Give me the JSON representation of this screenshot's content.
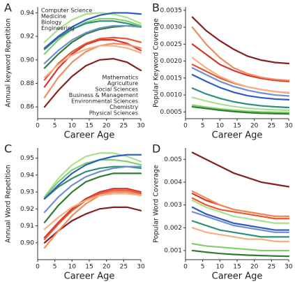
{
  "chart_data": [
    {
      "type": "line",
      "panel": "A",
      "x_label": "Career Age",
      "y_label": "Annual keyword Repetition",
      "x": [
        2,
        6,
        10,
        14,
        18,
        22,
        26,
        30
      ],
      "xlim": [
        0,
        30
      ],
      "xticks": [
        0,
        5,
        10,
        15,
        20,
        25,
        30
      ],
      "ylim": [
        0.85,
        0.945
      ],
      "yticks": [
        0.86,
        0.88,
        {
          "value": 0.9,
          "label": "0.90"
        },
        0.92,
        0.94
      ],
      "series": [
        {
          "name": "Computer Science",
          "color": "#a8e08e",
          "values": [
            0.915,
            0.926,
            0.934,
            0.939,
            0.94,
            0.939,
            0.936,
            0.931
          ]
        },
        {
          "name": "Medicine",
          "color": "#7fcf6b",
          "values": [
            0.905,
            0.917,
            0.926,
            0.932,
            0.935,
            0.935,
            0.933,
            0.929
          ]
        },
        {
          "name": "Biology",
          "color": "#2e7d32",
          "values": [
            0.893,
            0.905,
            0.915,
            0.922,
            0.926,
            0.928,
            0.929,
            0.928
          ]
        },
        {
          "name": "Engineering",
          "color": "#2f8f7a",
          "values": [
            0.909,
            0.919,
            0.926,
            0.931,
            0.933,
            0.933,
            0.931,
            0.928
          ]
        },
        {
          "name": "Mathematics",
          "color": "#8b1e1e",
          "values": [
            0.86,
            0.874,
            0.886,
            0.895,
            0.9,
            0.901,
            0.898,
            0.891
          ]
        },
        {
          "name": "Agriculture",
          "color": "#d9342b",
          "values": [
            0.877,
            0.893,
            0.905,
            0.913,
            0.917,
            0.917,
            0.914,
            0.908
          ]
        },
        {
          "name": "Social Sciences",
          "color": "#e8582e",
          "values": [
            0.883,
            0.897,
            0.907,
            0.914,
            0.918,
            0.919,
            0.918,
            0.915
          ]
        },
        {
          "name": "Business & Management",
          "color": "#f08c5c",
          "values": [
            0.868,
            0.885,
            0.898,
            0.907,
            0.912,
            0.914,
            0.913,
            0.91
          ]
        },
        {
          "name": "Environmental Sciences",
          "color": "#f6b083",
          "values": [
            0.885,
            0.896,
            0.904,
            0.909,
            0.912,
            0.912,
            0.91,
            0.906
          ]
        },
        {
          "name": "Chemistry",
          "color": "#6f8fd0",
          "values": [
            0.897,
            0.908,
            0.917,
            0.923,
            0.927,
            0.929,
            0.929,
            0.928
          ]
        },
        {
          "name": "Physical Sciences",
          "color": "#2f5bc4",
          "values": [
            0.91,
            0.92,
            0.928,
            0.934,
            0.938,
            0.94,
            0.94,
            0.939
          ]
        }
      ]
    },
    {
      "type": "line",
      "panel": "B",
      "x_label": "Career Age",
      "y_label": "Popular Keyword Coverage",
      "x": [
        2,
        6,
        10,
        14,
        18,
        22,
        26,
        30
      ],
      "xlim": [
        0,
        30
      ],
      "xticks": [
        0,
        5,
        10,
        15,
        20,
        25,
        30
      ],
      "ylim": [
        0.0003,
        0.0036
      ],
      "yticks": [
        0.0005,
        {
          "value": 0.001,
          "label": "0.0010"
        },
        0.0015,
        {
          "value": 0.002,
          "label": "0.0020"
        },
        0.0025,
        {
          "value": 0.003,
          "label": "0.0030"
        },
        0.0035
      ],
      "series": [
        {
          "color": "#a8e08e",
          "values": [
            0.00093,
            0.00082,
            0.00073,
            0.00066,
            0.00061,
            0.00058,
            0.00056,
            0.00055
          ]
        },
        {
          "color": "#7fcf6b",
          "values": [
            0.0007,
            0.00064,
            0.00059,
            0.00055,
            0.00052,
            0.0005,
            0.00049,
            0.00048
          ]
        },
        {
          "color": "#2e7d32",
          "values": [
            0.00065,
            0.0006,
            0.00055,
            0.00051,
            0.00048,
            0.00046,
            0.00045,
            0.00044
          ]
        },
        {
          "color": "#2f8f7a",
          "values": [
            0.0012,
            0.00103,
            0.0009,
            0.0008,
            0.00073,
            0.00068,
            0.00065,
            0.00063
          ]
        },
        {
          "color": "#8b1e1e",
          "values": [
            0.0033,
            0.0029,
            0.0026,
            0.00235,
            0.00215,
            0.00203,
            0.00196,
            0.00193
          ]
        },
        {
          "color": "#d9342b",
          "values": [
            0.0025,
            0.0022,
            0.0019,
            0.00172,
            0.00158,
            0.00149,
            0.00143,
            0.0014
          ]
        },
        {
          "color": "#e8582e",
          "values": [
            0.0019,
            0.0017,
            0.0015,
            0.00135,
            0.00124,
            0.00116,
            0.0011,
            0.00106
          ]
        },
        {
          "color": "#f08c5c",
          "values": [
            0.003,
            0.0025,
            0.0021,
            0.0018,
            0.00163,
            0.00152,
            0.00146,
            0.00143
          ]
        },
        {
          "color": "#f6b083",
          "values": [
            0.0021,
            0.0018,
            0.00155,
            0.00137,
            0.00124,
            0.00116,
            0.0011,
            0.00107
          ]
        },
        {
          "color": "#6f8fd0",
          "values": [
            0.0018,
            0.0016,
            0.0014,
            0.00125,
            0.00114,
            0.00106,
            0.001,
            0.00097
          ]
        },
        {
          "color": "#2f5bc4",
          "values": [
            0.0016,
            0.0014,
            0.00122,
            0.00108,
            0.00098,
            0.00092,
            0.00088,
            0.00086
          ]
        }
      ]
    },
    {
      "type": "line",
      "panel": "C",
      "x_label": "Career Age",
      "y_label": "Annual Word Repetition",
      "x": [
        2,
        6,
        10,
        14,
        18,
        22,
        26,
        30
      ],
      "xlim": [
        0,
        30
      ],
      "xticks": [
        0,
        5,
        10,
        15,
        20,
        25,
        30
      ],
      "ylim": [
        0.89,
        0.956
      ],
      "yticks": [
        {
          "value": 0.9,
          "label": "0.90"
        },
        0.91,
        0.92,
        0.93,
        0.94,
        0.95
      ],
      "series": [
        {
          "color": "#a8e08e",
          "values": [
            0.927,
            0.938,
            0.946,
            0.951,
            0.953,
            0.953,
            0.951,
            0.948
          ]
        },
        {
          "color": "#7fcf6b",
          "values": [
            0.927,
            0.936,
            0.943,
            0.947,
            0.949,
            0.949,
            0.948,
            0.946
          ]
        },
        {
          "color": "#2e7d32",
          "values": [
            0.912,
            0.922,
            0.93,
            0.936,
            0.939,
            0.941,
            0.941,
            0.941
          ]
        },
        {
          "color": "#2f8f7a",
          "values": [
            0.926,
            0.933,
            0.938,
            0.942,
            0.944,
            0.945,
            0.945,
            0.944
          ]
        },
        {
          "color": "#8b1e1e",
          "values": [
            0.9,
            0.907,
            0.913,
            0.917,
            0.92,
            0.921,
            0.921,
            0.919
          ]
        },
        {
          "color": "#d9342b",
          "values": [
            0.903,
            0.912,
            0.92,
            0.926,
            0.93,
            0.932,
            0.932,
            0.93
          ]
        },
        {
          "color": "#e8582e",
          "values": [
            0.902,
            0.911,
            0.919,
            0.925,
            0.929,
            0.931,
            0.931,
            0.929
          ]
        },
        {
          "color": "#f08c5c",
          "values": [
            0.897,
            0.907,
            0.916,
            0.923,
            0.928,
            0.93,
            0.93,
            0.928
          ]
        },
        {
          "color": "#f6b083",
          "values": [
            0.908,
            0.915,
            0.921,
            0.925,
            0.928,
            0.929,
            0.929,
            0.928
          ]
        },
        {
          "color": "#6f8fd0",
          "values": [
            0.918,
            0.927,
            0.934,
            0.939,
            0.942,
            0.944,
            0.945,
            0.945
          ]
        },
        {
          "color": "#2f5bc4",
          "values": [
            0.926,
            0.934,
            0.941,
            0.946,
            0.949,
            0.951,
            0.952,
            0.952
          ]
        }
      ]
    },
    {
      "type": "line",
      "panel": "D",
      "x_label": "Career Age",
      "y_label": "Popular Word Coverage",
      "x": [
        2,
        6,
        10,
        14,
        18,
        22,
        26,
        30
      ],
      "xlim": [
        0,
        30
      ],
      "xticks": [
        0,
        5,
        10,
        15,
        20,
        25,
        30
      ],
      "ylim": [
        0.0006,
        0.0055
      ],
      "yticks": [
        0.001,
        0.002,
        0.003,
        0.004,
        0.005
      ],
      "series": [
        {
          "color": "#a8e08e",
          "values": [
            0.0032,
            0.0029,
            0.0027,
            0.0025,
            0.0024,
            0.0023,
            0.0022,
            0.0022
          ]
        },
        {
          "color": "#7fcf6b",
          "values": [
            0.0013,
            0.0012,
            0.00115,
            0.0011,
            0.00105,
            0.001,
            0.001,
            0.001
          ]
        },
        {
          "color": "#2e7d32",
          "values": [
            0.001,
            0.00093,
            0.00087,
            0.00083,
            0.0008,
            0.00078,
            0.00076,
            0.00075
          ]
        },
        {
          "color": "#2f8f7a",
          "values": [
            0.0023,
            0.0021,
            0.0019,
            0.0018,
            0.0017,
            0.0016,
            0.0016,
            0.0016
          ]
        },
        {
          "color": "#8b1e1e",
          "values": [
            0.0053,
            0.005,
            0.0047,
            0.0044,
            0.0042,
            0.004,
            0.0039,
            0.0038
          ]
        },
        {
          "color": "#d9342b",
          "values": [
            0.0035,
            0.0032,
            0.003,
            0.0028,
            0.0027,
            0.0026,
            0.0025,
            0.0025
          ]
        },
        {
          "color": "#e8582e",
          "values": [
            0.0033,
            0.003,
            0.0028,
            0.0027,
            0.0026,
            0.0025,
            0.0024,
            0.0024
          ]
        },
        {
          "color": "#f08c5c",
          "values": [
            0.0036,
            0.0033,
            0.003,
            0.0028,
            0.0027,
            0.0026,
            0.0025,
            0.0025
          ]
        },
        {
          "color": "#f6b083",
          "values": [
            0.002,
            0.0018,
            0.0017,
            0.0016,
            0.0015,
            0.0015,
            0.0014,
            0.0014
          ]
        },
        {
          "color": "#6f8fd0",
          "values": [
            0.0027,
            0.0025,
            0.0023,
            0.0021,
            0.002,
            0.0019,
            0.0018,
            0.0018
          ]
        },
        {
          "color": "#2f5bc4",
          "values": [
            0.0029,
            0.0026,
            0.0024,
            0.0022,
            0.0021,
            0.002,
            0.0019,
            0.0019
          ]
        }
      ]
    }
  ]
}
